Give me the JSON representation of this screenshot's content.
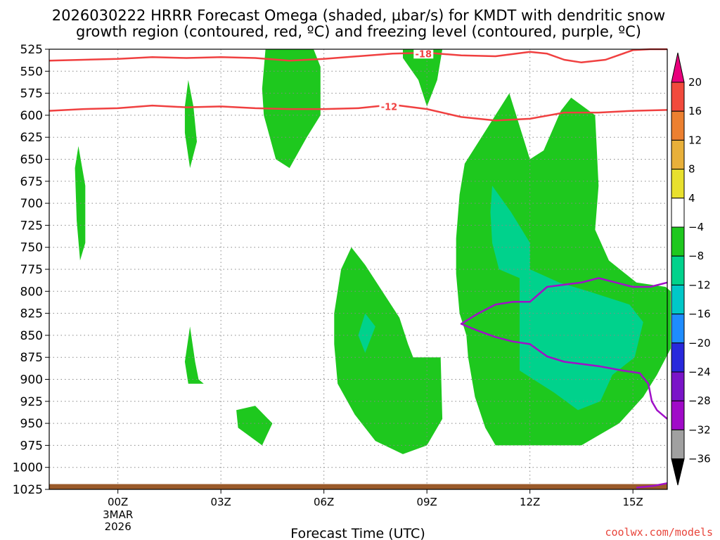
{
  "title_line1": "2026030222 HRRR Forecast Omega (shaded, μbar/s) for KMDT with dendritic snow",
  "title_line2": "growth region (contoured, red, ºC) and freezing level (contoured, purple, ºC)",
  "credit": "coolwx.com/models",
  "chart_data": {
    "type": "time-height contour",
    "xlabel": "Forecast Time (UTC)",
    "x_ticks": [
      {
        "hour": 0,
        "label": "00Z",
        "sub1": "3MAR",
        "sub2": "2026"
      },
      {
        "hour": 3,
        "label": "03Z"
      },
      {
        "hour": 6,
        "label": "06Z"
      },
      {
        "hour": 9,
        "label": "09Z"
      },
      {
        "hour": 12,
        "label": "12Z"
      },
      {
        "hour": 15,
        "label": "15Z"
      }
    ],
    "x_range_hours": [
      -2,
      16
    ],
    "y_axis": "pressure (mb)",
    "y_ticks": [
      525,
      550,
      575,
      600,
      625,
      650,
      675,
      700,
      725,
      750,
      775,
      800,
      825,
      850,
      875,
      900,
      925,
      950,
      975,
      1000,
      1025
    ],
    "y_range": [
      525,
      1025
    ],
    "grid": true,
    "colorbar": {
      "labels": [
        20,
        16,
        12,
        8,
        4,
        -4,
        -8,
        -12,
        -16,
        -20,
        -24,
        -28,
        -32,
        -36
      ],
      "colors": [
        "#e8007c",
        "#f24a3c",
        "#ec8030",
        "#e8b03a",
        "#e8e02e",
        "#ffffff",
        "#1ec81e",
        "#00d28c",
        "#00c8c8",
        "#1e8cff",
        "#2828dc",
        "#7a14c8",
        "#a00ac8",
        "#a0a0a0",
        "#000000"
      ]
    },
    "omega_regions": [
      {
        "level": "-4 to -8",
        "color": "#1ec81e",
        "points": [
          [
            -1.15,
            635
          ],
          [
            -0.95,
            680
          ],
          [
            -0.95,
            745
          ],
          [
            -1.1,
            765
          ],
          [
            -1.2,
            720
          ],
          [
            -1.25,
            660
          ]
        ]
      },
      {
        "level": "-4 to -8",
        "color": "#1ec81e",
        "points": [
          [
            1.95,
            590
          ],
          [
            2.05,
            560
          ],
          [
            2.2,
            590
          ],
          [
            2.3,
            630
          ],
          [
            2.1,
            660
          ],
          [
            1.95,
            620
          ]
        ]
      },
      {
        "level": "-4 to -8",
        "color": "#1ec81e",
        "points": [
          [
            4.3,
            525
          ],
          [
            5.7,
            525
          ],
          [
            5.9,
            545
          ],
          [
            5.9,
            600
          ],
          [
            5.5,
            625
          ],
          [
            5,
            660
          ],
          [
            4.6,
            650
          ],
          [
            4.25,
            600
          ],
          [
            4.2,
            570
          ]
        ]
      },
      {
        "level": "-4 to -8",
        "color": "#1ec81e",
        "points": [
          [
            8.3,
            525
          ],
          [
            9.45,
            525
          ],
          [
            9.3,
            560
          ],
          [
            9,
            590
          ],
          [
            8.75,
            560
          ],
          [
            8.3,
            535
          ]
        ]
      },
      {
        "level": "-4 to -8",
        "color": "#1ec81e",
        "points": [
          [
            1.95,
            880
          ],
          [
            2.1,
            840
          ],
          [
            2.25,
            880
          ],
          [
            2.35,
            900
          ],
          [
            2.5,
            905
          ],
          [
            2.05,
            905
          ]
        ]
      },
      {
        "level": "-4 to -8",
        "color": "#1ec81e",
        "points": [
          [
            3.45,
            935
          ],
          [
            4.0,
            930
          ],
          [
            4.5,
            950
          ],
          [
            4.2,
            975
          ],
          [
            3.5,
            955
          ]
        ]
      },
      {
        "level": "-4 to -8",
        "color": "#1ec81e",
        "points": [
          [
            6.3,
            825
          ],
          [
            6.5,
            775
          ],
          [
            6.8,
            750
          ],
          [
            7.2,
            770
          ],
          [
            7.7,
            800
          ],
          [
            8.2,
            830
          ],
          [
            8.45,
            860
          ],
          [
            8.6,
            875
          ],
          [
            9.4,
            875
          ],
          [
            9.45,
            945
          ],
          [
            9.0,
            975
          ],
          [
            8.3,
            985
          ],
          [
            7.5,
            970
          ],
          [
            6.9,
            940
          ],
          [
            6.4,
            905
          ],
          [
            6.3,
            860
          ]
        ]
      },
      {
        "level": "-4 to -8",
        "color": "#1ec81e",
        "points": [
          [
            9.95,
            690
          ],
          [
            10.1,
            655
          ],
          [
            11.4,
            575
          ],
          [
            12.0,
            650
          ],
          [
            12.4,
            640
          ],
          [
            12.9,
            595
          ],
          [
            13.2,
            580
          ],
          [
            13.9,
            600
          ],
          [
            14.0,
            680
          ],
          [
            13.9,
            730
          ],
          [
            14.3,
            765
          ],
          [
            15.1,
            790
          ],
          [
            15.95,
            795
          ],
          [
            16.1,
            800
          ],
          [
            16.1,
            865
          ],
          [
            15.7,
            895
          ],
          [
            15.3,
            920
          ],
          [
            14.6,
            950
          ],
          [
            13.5,
            975
          ],
          [
            12.3,
            975
          ],
          [
            11.0,
            975
          ],
          [
            10.7,
            955
          ],
          [
            10.4,
            920
          ],
          [
            10.2,
            875
          ],
          [
            10.15,
            850
          ],
          [
            9.95,
            825
          ],
          [
            9.85,
            780
          ],
          [
            9.85,
            740
          ]
        ]
      },
      {
        "level": "-8 to -12",
        "color": "#00d28c",
        "points": [
          [
            7.2,
            825
          ],
          [
            7.5,
            840
          ],
          [
            7.2,
            870
          ],
          [
            7.0,
            850
          ]
        ]
      },
      {
        "level": "-8 to -12",
        "color": "#00d28c",
        "points": [
          [
            10.9,
            680
          ],
          [
            11.45,
            710
          ],
          [
            12.0,
            745
          ],
          [
            12.0,
            775
          ],
          [
            12.85,
            790
          ],
          [
            13.7,
            800
          ],
          [
            14.9,
            815
          ],
          [
            15.3,
            835
          ],
          [
            15.05,
            875
          ],
          [
            14.4,
            895
          ],
          [
            14.05,
            925
          ],
          [
            13.4,
            935
          ],
          [
            12.7,
            915
          ],
          [
            11.7,
            890
          ],
          [
            11.7,
            785
          ],
          [
            11.1,
            775
          ],
          [
            10.9,
            745
          ],
          [
            10.85,
            710
          ]
        ]
      }
    ],
    "dgz_contours": [
      {
        "label": "-18",
        "color": "#f04040",
        "points": [
          [
            -2,
            538
          ],
          [
            -1,
            537
          ],
          [
            0,
            536
          ],
          [
            1,
            534
          ],
          [
            2,
            535
          ],
          [
            3,
            534
          ],
          [
            4,
            535
          ],
          [
            5,
            538
          ],
          [
            6,
            536
          ],
          [
            7,
            533
          ],
          [
            8,
            530
          ],
          [
            9,
            529
          ],
          [
            10,
            532
          ],
          [
            11,
            533
          ],
          [
            12,
            528
          ],
          [
            12.5,
            530
          ],
          [
            13,
            537
          ],
          [
            13.5,
            540
          ],
          [
            14.2,
            537
          ],
          [
            15,
            526
          ],
          [
            15.5,
            525
          ],
          [
            16,
            525
          ]
        ],
        "label_at": [
          8.9,
          530
        ]
      },
      {
        "label": "-12",
        "color": "#f04040",
        "points": [
          [
            -2,
            595
          ],
          [
            -1,
            593
          ],
          [
            0,
            592
          ],
          [
            1,
            589
          ],
          [
            2,
            591
          ],
          [
            3,
            590
          ],
          [
            4,
            592
          ],
          [
            5,
            593
          ],
          [
            6,
            593
          ],
          [
            7,
            592
          ],
          [
            8,
            588
          ],
          [
            9,
            593
          ],
          [
            10,
            602
          ],
          [
            11,
            606
          ],
          [
            12,
            604
          ],
          [
            13,
            597
          ],
          [
            14,
            597
          ],
          [
            15,
            595
          ],
          [
            16,
            594
          ]
        ],
        "label_at": [
          7.9,
          590
        ]
      }
    ],
    "freezing_level": [
      {
        "color": "#a010c8",
        "points": [
          [
            16,
            790
          ],
          [
            15.5,
            795
          ],
          [
            15,
            795
          ],
          [
            14.5,
            790
          ],
          [
            14,
            785
          ],
          [
            13.5,
            790
          ],
          [
            12.5,
            795
          ],
          [
            12,
            812
          ],
          [
            11.5,
            812
          ],
          [
            11,
            815
          ],
          [
            10.5,
            825
          ],
          [
            10,
            837
          ],
          [
            10.5,
            845
          ],
          [
            11,
            852
          ],
          [
            11.5,
            857
          ],
          [
            12,
            860
          ],
          [
            12.5,
            874
          ],
          [
            13,
            880
          ],
          [
            14,
            885
          ],
          [
            14.7,
            890
          ],
          [
            15.2,
            893
          ],
          [
            15.45,
            905
          ],
          [
            15.55,
            925
          ],
          [
            15.7,
            935
          ],
          [
            16,
            945
          ]
        ]
      },
      {
        "color": "#a010c8",
        "points": [
          [
            15.1,
            1023
          ],
          [
            15.6,
            1021
          ],
          [
            16,
            1018
          ]
        ]
      }
    ],
    "terrain": {
      "color": "#9a5a2a",
      "top_pressure": 1019
    }
  }
}
